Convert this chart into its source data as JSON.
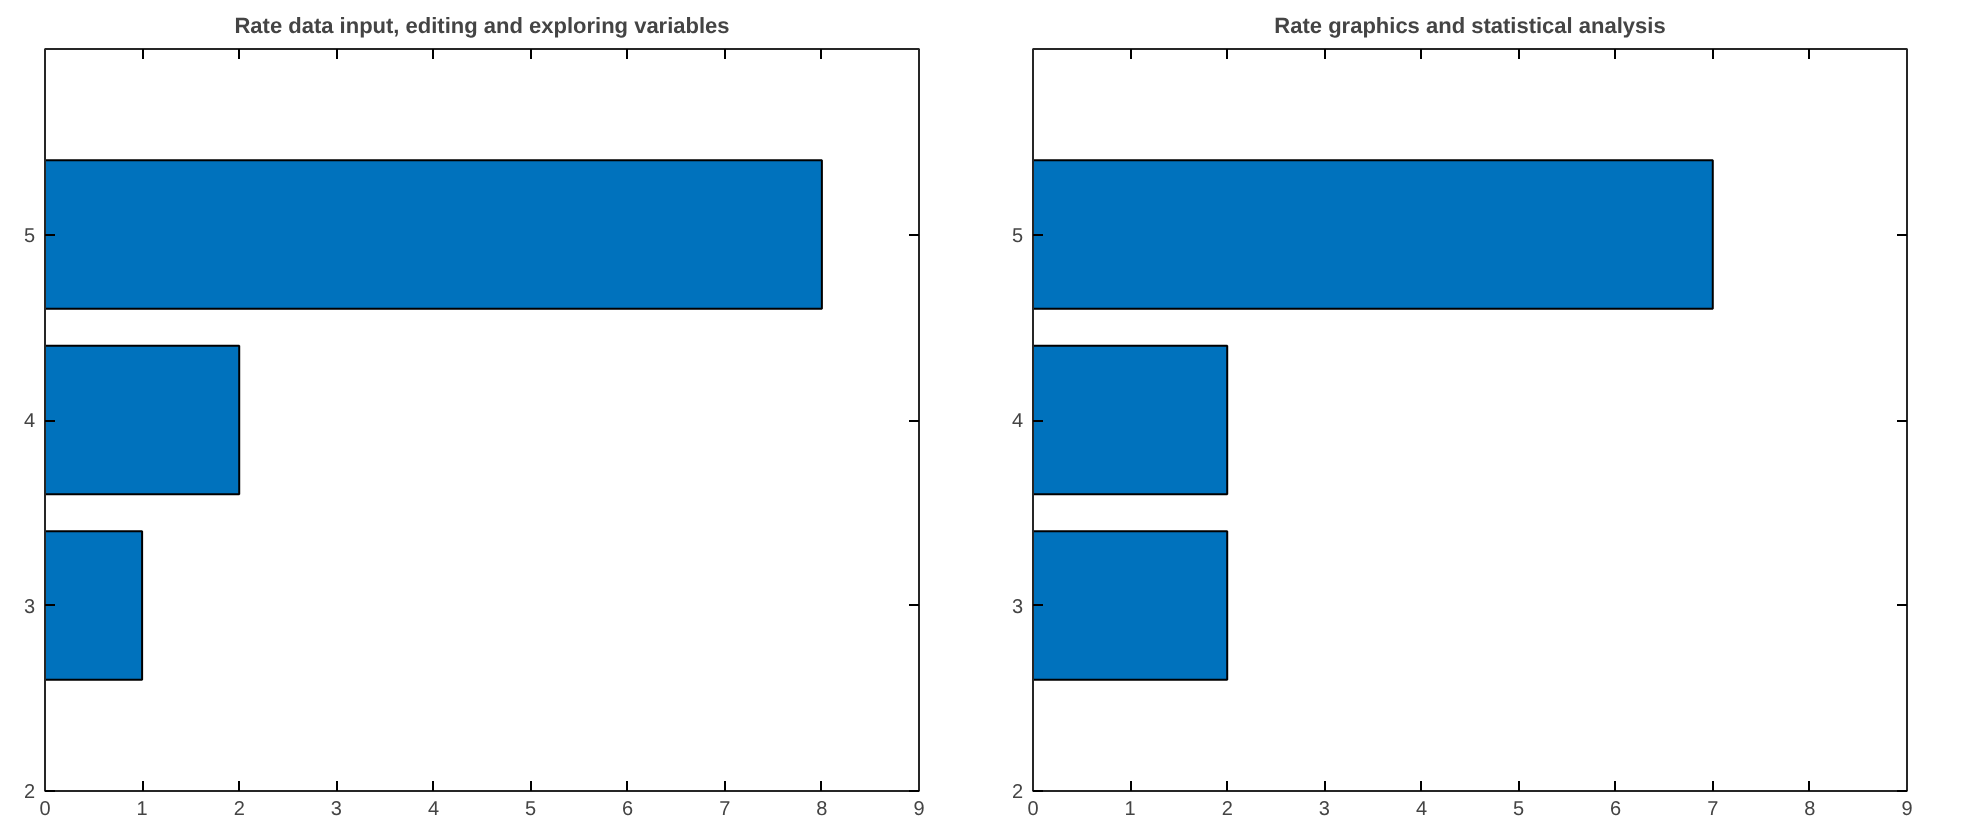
{
  "chart_data": [
    {
      "type": "bar",
      "orientation": "horizontal",
      "title": "Rate data input, editing and exploring variables",
      "x": [
        3,
        4,
        5
      ],
      "values": [
        1,
        2,
        8
      ],
      "color": "#0072bd",
      "xlim": [
        0,
        9
      ],
      "xticks": [
        0,
        1,
        2,
        3,
        4,
        5,
        6,
        7,
        8,
        9
      ],
      "ylim": [
        2,
        6
      ],
      "yticks": [
        2,
        3,
        4,
        5
      ]
    },
    {
      "type": "bar",
      "orientation": "horizontal",
      "title": "Rate graphics and statistical analysis",
      "x": [
        3,
        4,
        5
      ],
      "values": [
        2,
        2,
        7
      ],
      "color": "#0072bd",
      "xlim": [
        0,
        9
      ],
      "xticks": [
        0,
        1,
        2,
        3,
        4,
        5,
        6,
        7,
        8,
        9
      ],
      "ylim": [
        2,
        6
      ],
      "yticks": [
        2,
        3,
        4,
        5
      ]
    }
  ]
}
